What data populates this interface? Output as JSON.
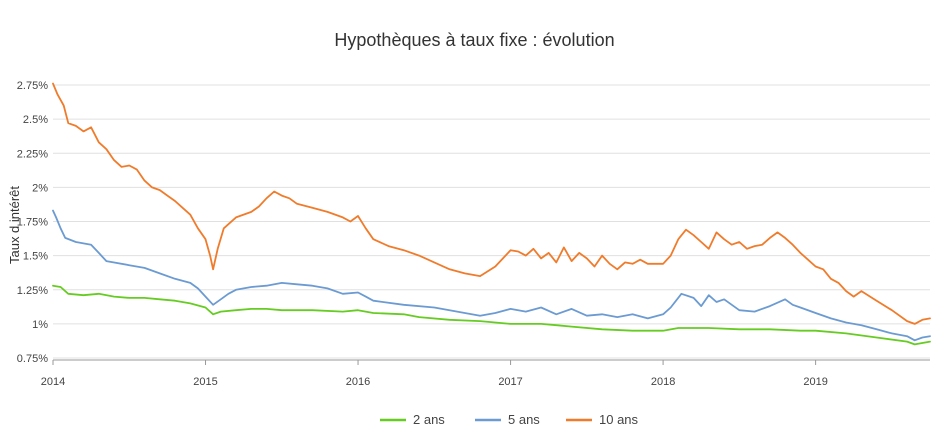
{
  "chart_data": {
    "type": "line",
    "title": "Hypothèques à taux fixe : évolution",
    "ylabel": "Taux d intérêt",
    "xlabel": "",
    "xlim": [
      2014.0,
      2019.75
    ],
    "ylim": [
      0.75,
      2.8
    ],
    "x_ticks": [
      2014,
      2015,
      2016,
      2017,
      2018,
      2019
    ],
    "x_tick_labels": [
      "2014",
      "2015",
      "2016",
      "2017",
      "2018",
      "2019"
    ],
    "y_ticks": [
      0.75,
      1.0,
      1.25,
      1.5,
      1.75,
      2.0,
      2.25,
      2.5,
      2.75
    ],
    "y_tick_labels": [
      "0.75%",
      "1%",
      "1.25%",
      "1.5%",
      "1.75%",
      "2%",
      "2.25%",
      "2.5%",
      "2.75%"
    ],
    "grid": true,
    "legend_position": "bottom",
    "series": [
      {
        "name": "2 ans",
        "color": "#66cc22",
        "points": [
          [
            2014.0,
            1.28
          ],
          [
            2014.05,
            1.27
          ],
          [
            2014.1,
            1.22
          ],
          [
            2014.2,
            1.21
          ],
          [
            2014.3,
            1.22
          ],
          [
            2014.4,
            1.2
          ],
          [
            2014.5,
            1.19
          ],
          [
            2014.6,
            1.19
          ],
          [
            2014.7,
            1.18
          ],
          [
            2014.8,
            1.17
          ],
          [
            2014.9,
            1.15
          ],
          [
            2015.0,
            1.12
          ],
          [
            2015.05,
            1.07
          ],
          [
            2015.1,
            1.09
          ],
          [
            2015.2,
            1.1
          ],
          [
            2015.3,
            1.11
          ],
          [
            2015.4,
            1.11
          ],
          [
            2015.5,
            1.1
          ],
          [
            2015.7,
            1.1
          ],
          [
            2015.9,
            1.09
          ],
          [
            2016.0,
            1.1
          ],
          [
            2016.1,
            1.08
          ],
          [
            2016.3,
            1.07
          ],
          [
            2016.4,
            1.05
          ],
          [
            2016.6,
            1.03
          ],
          [
            2016.8,
            1.02
          ],
          [
            2017.0,
            1.0
          ],
          [
            2017.2,
            1.0
          ],
          [
            2017.3,
            0.99
          ],
          [
            2017.4,
            0.98
          ],
          [
            2017.6,
            0.96
          ],
          [
            2017.8,
            0.95
          ],
          [
            2018.0,
            0.95
          ],
          [
            2018.1,
            0.97
          ],
          [
            2018.3,
            0.97
          ],
          [
            2018.5,
            0.96
          ],
          [
            2018.7,
            0.96
          ],
          [
            2018.9,
            0.95
          ],
          [
            2019.0,
            0.95
          ],
          [
            2019.2,
            0.93
          ],
          [
            2019.4,
            0.9
          ],
          [
            2019.6,
            0.87
          ],
          [
            2019.65,
            0.85
          ],
          [
            2019.75,
            0.87
          ]
        ]
      },
      {
        "name": "5 ans",
        "color": "#6b9bd2",
        "points": [
          [
            2014.0,
            1.83
          ],
          [
            2014.02,
            1.78
          ],
          [
            2014.05,
            1.7
          ],
          [
            2014.08,
            1.63
          ],
          [
            2014.15,
            1.6
          ],
          [
            2014.25,
            1.58
          ],
          [
            2014.3,
            1.52
          ],
          [
            2014.35,
            1.46
          ],
          [
            2014.5,
            1.43
          ],
          [
            2014.6,
            1.41
          ],
          [
            2014.7,
            1.37
          ],
          [
            2014.8,
            1.33
          ],
          [
            2014.9,
            1.3
          ],
          [
            2014.95,
            1.26
          ],
          [
            2015.0,
            1.2
          ],
          [
            2015.05,
            1.14
          ],
          [
            2015.1,
            1.18
          ],
          [
            2015.15,
            1.22
          ],
          [
            2015.2,
            1.25
          ],
          [
            2015.3,
            1.27
          ],
          [
            2015.4,
            1.28
          ],
          [
            2015.5,
            1.3
          ],
          [
            2015.6,
            1.29
          ],
          [
            2015.7,
            1.28
          ],
          [
            2015.8,
            1.26
          ],
          [
            2015.9,
            1.22
          ],
          [
            2016.0,
            1.23
          ],
          [
            2016.05,
            1.2
          ],
          [
            2016.1,
            1.17
          ],
          [
            2016.3,
            1.14
          ],
          [
            2016.5,
            1.12
          ],
          [
            2016.7,
            1.08
          ],
          [
            2016.8,
            1.06
          ],
          [
            2016.9,
            1.08
          ],
          [
            2017.0,
            1.11
          ],
          [
            2017.1,
            1.09
          ],
          [
            2017.2,
            1.12
          ],
          [
            2017.3,
            1.07
          ],
          [
            2017.4,
            1.11
          ],
          [
            2017.5,
            1.06
          ],
          [
            2017.6,
            1.07
          ],
          [
            2017.7,
            1.05
          ],
          [
            2017.8,
            1.07
          ],
          [
            2017.9,
            1.04
          ],
          [
            2018.0,
            1.07
          ],
          [
            2018.05,
            1.12
          ],
          [
            2018.12,
            1.22
          ],
          [
            2018.2,
            1.19
          ],
          [
            2018.25,
            1.13
          ],
          [
            2018.3,
            1.21
          ],
          [
            2018.35,
            1.16
          ],
          [
            2018.4,
            1.18
          ],
          [
            2018.5,
            1.1
          ],
          [
            2018.6,
            1.09
          ],
          [
            2018.7,
            1.13
          ],
          [
            2018.8,
            1.18
          ],
          [
            2018.85,
            1.14
          ],
          [
            2018.9,
            1.12
          ],
          [
            2019.0,
            1.08
          ],
          [
            2019.1,
            1.04
          ],
          [
            2019.2,
            1.01
          ],
          [
            2019.3,
            0.99
          ],
          [
            2019.4,
            0.96
          ],
          [
            2019.5,
            0.93
          ],
          [
            2019.6,
            0.91
          ],
          [
            2019.65,
            0.88
          ],
          [
            2019.7,
            0.9
          ],
          [
            2019.75,
            0.91
          ]
        ]
      },
      {
        "name": "10 ans",
        "color": "#f07b2b",
        "points": [
          [
            2014.0,
            2.76
          ],
          [
            2014.03,
            2.68
          ],
          [
            2014.07,
            2.6
          ],
          [
            2014.1,
            2.47
          ],
          [
            2014.15,
            2.45
          ],
          [
            2014.2,
            2.41
          ],
          [
            2014.25,
            2.44
          ],
          [
            2014.3,
            2.33
          ],
          [
            2014.35,
            2.28
          ],
          [
            2014.4,
            2.2
          ],
          [
            2014.45,
            2.15
          ],
          [
            2014.5,
            2.16
          ],
          [
            2014.55,
            2.13
          ],
          [
            2014.6,
            2.05
          ],
          [
            2014.65,
            2.0
          ],
          [
            2014.7,
            1.98
          ],
          [
            2014.75,
            1.94
          ],
          [
            2014.8,
            1.9
          ],
          [
            2014.85,
            1.85
          ],
          [
            2014.9,
            1.8
          ],
          [
            2014.95,
            1.7
          ],
          [
            2015.0,
            1.62
          ],
          [
            2015.03,
            1.5
          ],
          [
            2015.05,
            1.4
          ],
          [
            2015.08,
            1.55
          ],
          [
            2015.12,
            1.7
          ],
          [
            2015.2,
            1.78
          ],
          [
            2015.3,
            1.82
          ],
          [
            2015.35,
            1.86
          ],
          [
            2015.4,
            1.92
          ],
          [
            2015.45,
            1.97
          ],
          [
            2015.5,
            1.94
          ],
          [
            2015.55,
            1.92
          ],
          [
            2015.6,
            1.88
          ],
          [
            2015.7,
            1.85
          ],
          [
            2015.8,
            1.82
          ],
          [
            2015.9,
            1.78
          ],
          [
            2015.95,
            1.75
          ],
          [
            2016.0,
            1.79
          ],
          [
            2016.05,
            1.7
          ],
          [
            2016.1,
            1.62
          ],
          [
            2016.2,
            1.57
          ],
          [
            2016.3,
            1.54
          ],
          [
            2016.4,
            1.5
          ],
          [
            2016.5,
            1.45
          ],
          [
            2016.6,
            1.4
          ],
          [
            2016.7,
            1.37
          ],
          [
            2016.8,
            1.35
          ],
          [
            2016.9,
            1.42
          ],
          [
            2017.0,
            1.54
          ],
          [
            2017.05,
            1.53
          ],
          [
            2017.1,
            1.5
          ],
          [
            2017.15,
            1.55
          ],
          [
            2017.2,
            1.48
          ],
          [
            2017.25,
            1.52
          ],
          [
            2017.3,
            1.45
          ],
          [
            2017.35,
            1.56
          ],
          [
            2017.4,
            1.46
          ],
          [
            2017.45,
            1.52
          ],
          [
            2017.5,
            1.48
          ],
          [
            2017.55,
            1.42
          ],
          [
            2017.6,
            1.5
          ],
          [
            2017.65,
            1.44
          ],
          [
            2017.7,
            1.4
          ],
          [
            2017.75,
            1.45
          ],
          [
            2017.8,
            1.44
          ],
          [
            2017.85,
            1.47
          ],
          [
            2017.9,
            1.44
          ],
          [
            2018.0,
            1.44
          ],
          [
            2018.05,
            1.5
          ],
          [
            2018.1,
            1.62
          ],
          [
            2018.15,
            1.69
          ],
          [
            2018.2,
            1.65
          ],
          [
            2018.25,
            1.6
          ],
          [
            2018.3,
            1.55
          ],
          [
            2018.35,
            1.67
          ],
          [
            2018.4,
            1.62
          ],
          [
            2018.45,
            1.58
          ],
          [
            2018.5,
            1.6
          ],
          [
            2018.55,
            1.55
          ],
          [
            2018.6,
            1.57
          ],
          [
            2018.65,
            1.58
          ],
          [
            2018.7,
            1.63
          ],
          [
            2018.75,
            1.67
          ],
          [
            2018.8,
            1.63
          ],
          [
            2018.85,
            1.58
          ],
          [
            2018.9,
            1.52
          ],
          [
            2018.95,
            1.47
          ],
          [
            2019.0,
            1.42
          ],
          [
            2019.05,
            1.4
          ],
          [
            2019.1,
            1.33
          ],
          [
            2019.15,
            1.3
          ],
          [
            2019.2,
            1.24
          ],
          [
            2019.25,
            1.2
          ],
          [
            2019.3,
            1.24
          ],
          [
            2019.4,
            1.17
          ],
          [
            2019.5,
            1.1
          ],
          [
            2019.6,
            1.02
          ],
          [
            2019.65,
            1.0
          ],
          [
            2019.7,
            1.03
          ],
          [
            2019.75,
            1.04
          ]
        ]
      }
    ]
  }
}
